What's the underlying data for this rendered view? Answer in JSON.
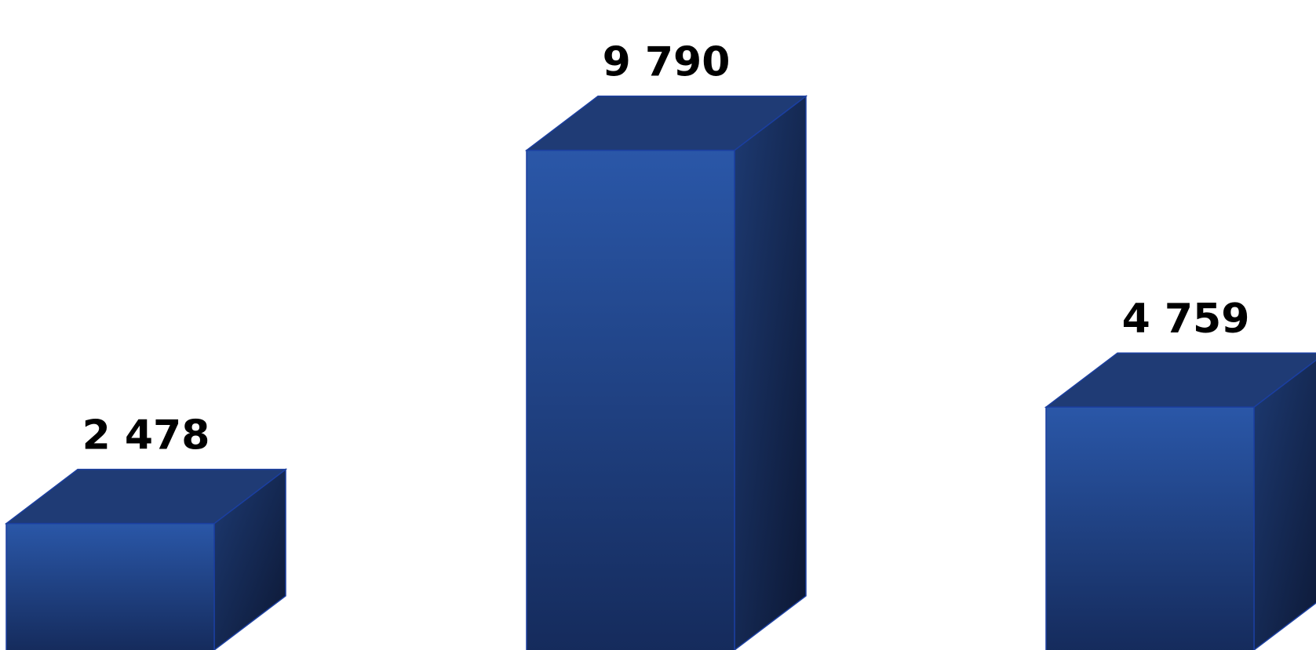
{
  "chart_data": {
    "type": "bar",
    "style": "3d-column",
    "categories": [
      "",
      "",
      ""
    ],
    "values": [
      2478,
      9790,
      4759
    ],
    "data_labels": [
      "2 478",
      "9 790",
      "4 759"
    ],
    "title": "",
    "xlabel": "",
    "ylabel": "",
    "ylim": [
      0,
      10500
    ],
    "grid": false,
    "legend": "none",
    "colors": {
      "front_top": "#2a57a8",
      "front_bottom": "#152b5c",
      "side_top": "#1d3a72",
      "side_bottom": "#0c1733",
      "top_face": "#1f3b75",
      "edge": "#1b3fa0"
    }
  }
}
